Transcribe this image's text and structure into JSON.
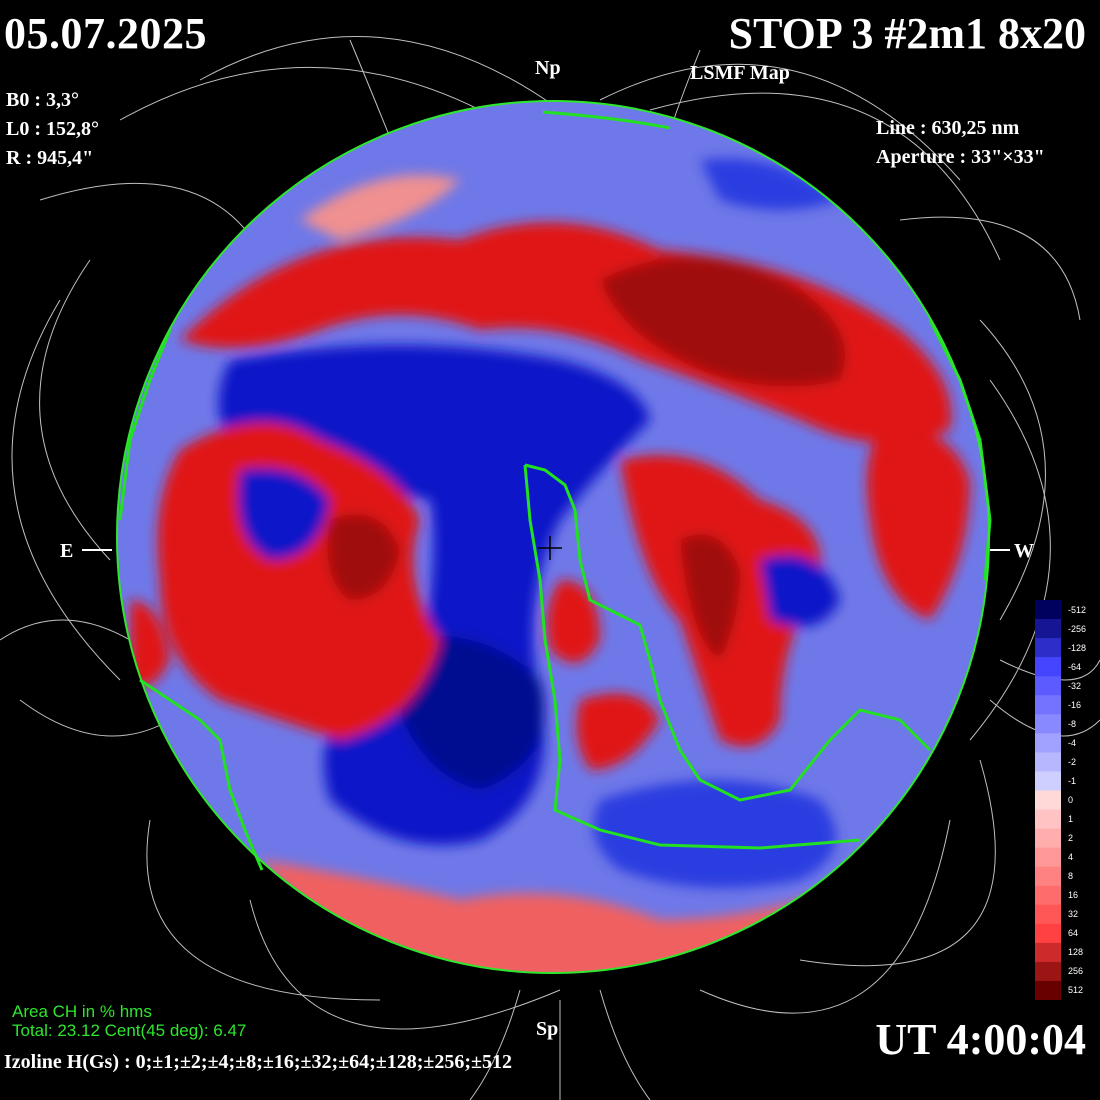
{
  "header": {
    "date": "05.07.2025",
    "title": "STOP 3 #2m1 8x20",
    "subtitle": "LSMF Map"
  },
  "params_left": {
    "b0": "B0 : 3,3°",
    "l0": "L0 : 152,8°",
    "radius": "R  : 945,4\""
  },
  "params_right": {
    "line": "Line :  630,25 nm",
    "aperture": "Aperture : 33\"×33\""
  },
  "directions": {
    "north": "Np",
    "south": "Sp",
    "east": "E",
    "west": "W"
  },
  "time": "UT 4:00:04",
  "coronal_hole": {
    "label": "Area CH in % hms",
    "summary": "Total: 23.12    Cent(45 deg): 6.47"
  },
  "isoline": "Izoline H(Gs) : 0;±1;±2;±4;±8;±16;±32;±64;±128;±256;±512",
  "colors": {
    "positive": "#e01010",
    "negative": "#1020d0",
    "neutral": "#ffffff",
    "ch_boundary": "#22e022"
  },
  "scale": {
    "ticks": [
      "-512",
      "-256",
      "-128",
      "-64",
      "-32",
      "-16",
      "-8",
      "-4",
      "-2",
      "-1",
      "0",
      "1",
      "2",
      "4",
      "8",
      "16",
      "32",
      "64",
      "128",
      "256",
      "512"
    ]
  }
}
